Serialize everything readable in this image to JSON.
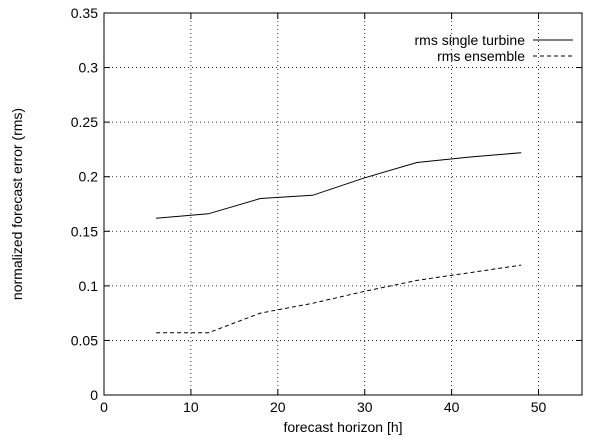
{
  "chart_data": {
    "type": "line",
    "title": "",
    "xlabel": "forecast horizon [h]",
    "ylabel": "normalized forecast error (rms)",
    "xlim": [
      0,
      55
    ],
    "ylim": [
      0,
      0.35
    ],
    "xticks": [
      0,
      10,
      20,
      30,
      40,
      50
    ],
    "yticks": [
      0,
      0.05,
      0.1,
      0.15,
      0.2,
      0.25,
      0.3,
      0.35
    ],
    "xtick_labels": [
      "0",
      "10",
      "20",
      "30",
      "40",
      "50"
    ],
    "ytick_labels": [
      "0",
      "0.05",
      "0.1",
      "0.15",
      "0.2",
      "0.25",
      "0.3",
      "0.35"
    ],
    "grid": true,
    "legend_position": "top-right",
    "series": [
      {
        "name": "rms single turbine",
        "style": "solid",
        "x": [
          6,
          12,
          18,
          24,
          30,
          36,
          42,
          48
        ],
        "y": [
          0.162,
          0.166,
          0.18,
          0.183,
          0.199,
          0.213,
          0.218,
          0.222
        ]
      },
      {
        "name": "rms ensemble",
        "style": "dashed",
        "x": [
          6,
          12,
          18,
          24,
          30,
          36,
          42,
          48
        ],
        "y": [
          0.057,
          0.057,
          0.075,
          0.084,
          0.095,
          0.105,
          0.112,
          0.119
        ]
      }
    ]
  }
}
